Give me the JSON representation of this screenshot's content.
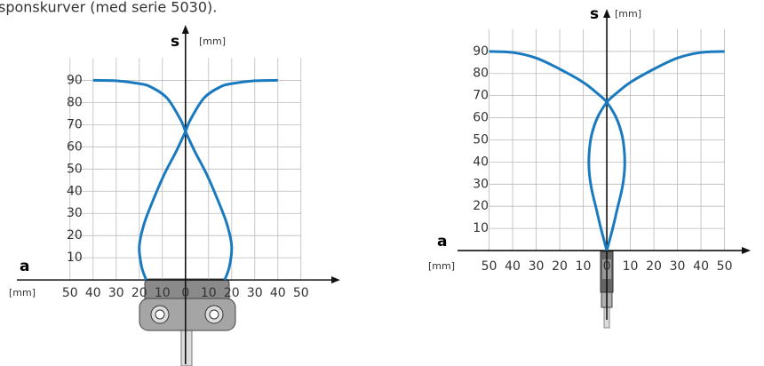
{
  "caption": "sponskurver (med serie 5030).",
  "chart_data": [
    {
      "type": "line",
      "y_axis_label": "s",
      "y_axis_unit": "[mm]",
      "x_axis_label": "a",
      "x_axis_unit": "[mm]",
      "xlim": [
        -73,
        67
      ],
      "ylim": [
        -38,
        115
      ],
      "xticks": [
        {
          "value": -50,
          "label": "50"
        },
        {
          "value": -40,
          "label": "40"
        },
        {
          "value": -30,
          "label": "30"
        },
        {
          "value": -20,
          "label": "20"
        },
        {
          "value": -10,
          "label": "10"
        },
        0,
        10,
        20,
        30,
        40,
        50
      ],
      "yticks": [
        10,
        20,
        30,
        40,
        50,
        60,
        70,
        80,
        90
      ],
      "grid": true,
      "series": [
        {
          "color": "#1a7abf",
          "x": [
            -40,
            -30,
            -20,
            -15,
            -8,
            -2,
            0,
            4,
            9,
            14,
            18,
            20,
            19,
            17
          ],
          "values": [
            90,
            89.8,
            88.5,
            87,
            82,
            72,
            67,
            58,
            48,
            36,
            25,
            15,
            6,
            0
          ]
        },
        {
          "color": "#1a7abf",
          "x": [
            40,
            30,
            20,
            15,
            8,
            2,
            0,
            -4,
            -9,
            -14,
            -18,
            -20,
            -19,
            -17
          ],
          "values": [
            90,
            89.8,
            88.5,
            87,
            82,
            72,
            67,
            58,
            48,
            36,
            25,
            15,
            6,
            0
          ]
        }
      ]
    },
    {
      "type": "line",
      "y_axis_label": "s",
      "y_axis_unit": "[mm]",
      "x_axis_label": "a",
      "x_axis_unit": "[mm]",
      "xlim": [
        -63.4,
        61.1
      ],
      "ylim": [
        -31.3,
        109.2
      ],
      "xticks": [
        {
          "value": -50,
          "label": "50"
        },
        {
          "value": -40,
          "label": "40"
        },
        {
          "value": -30,
          "label": "30"
        },
        {
          "value": -20,
          "label": "20"
        },
        {
          "value": -10,
          "label": "10"
        },
        0,
        10,
        20,
        30,
        40,
        50
      ],
      "yticks": [
        10,
        20,
        30,
        40,
        50,
        60,
        70,
        80,
        90
      ],
      "grid": true,
      "series": [
        {
          "color": "#1a7abf",
          "x": [
            -50,
            -40,
            -30,
            -20,
            -10,
            -4,
            0,
            4,
            6.5,
            7.5,
            7.5,
            6.5,
            4.5,
            2.5,
            0
          ],
          "values": [
            90,
            89.5,
            87,
            82,
            76,
            71,
            67,
            60,
            52,
            44,
            36,
            28,
            19,
            10,
            0
          ]
        },
        {
          "color": "#1a7abf",
          "x": [
            50,
            40,
            30,
            20,
            10,
            4,
            0,
            -4,
            -6.5,
            -7.5,
            -7.5,
            -6.5,
            -4.5,
            -2.5,
            0
          ],
          "values": [
            90,
            89.5,
            87,
            82,
            76,
            71,
            67,
            60,
            52,
            44,
            36,
            28,
            19,
            10,
            0
          ]
        }
      ]
    }
  ]
}
